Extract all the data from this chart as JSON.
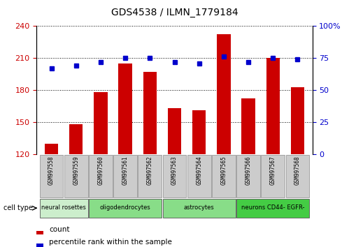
{
  "title": "GDS4538 / ILMN_1779184",
  "samples": [
    "GSM997558",
    "GSM997559",
    "GSM997560",
    "GSM997561",
    "GSM997562",
    "GSM997563",
    "GSM997564",
    "GSM997565",
    "GSM997566",
    "GSM997567",
    "GSM997568"
  ],
  "counts": [
    130,
    148,
    178,
    205,
    197,
    163,
    161,
    232,
    172,
    210,
    183
  ],
  "percentiles": [
    67,
    69,
    72,
    75,
    75,
    72,
    71,
    76,
    72,
    75,
    74
  ],
  "ylim_left": [
    120,
    240
  ],
  "yticks_left": [
    120,
    150,
    180,
    210,
    240
  ],
  "ylim_right": [
    0,
    100
  ],
  "yticks_right": [
    0,
    25,
    50,
    75,
    100
  ],
  "bar_color": "#cc0000",
  "dot_color": "#0000cc",
  "cell_types": [
    {
      "label": "neural rosettes",
      "span": [
        0,
        2
      ],
      "color": "#cceecc"
    },
    {
      "label": "oligodendrocytes",
      "span": [
        2,
        5
      ],
      "color": "#88dd88"
    },
    {
      "label": "astrocytes",
      "span": [
        5,
        8
      ],
      "color": "#88dd88"
    },
    {
      "label": "neurons CD44- EGFR-",
      "span": [
        8,
        11
      ],
      "color": "#44cc44"
    }
  ],
  "left_tick_color": "#cc0000",
  "right_tick_color": "#0000cc",
  "grid_color": "#000000",
  "bg_color": "#ffffff",
  "plot_bg": "#ffffff",
  "legend_count_label": "count",
  "legend_pct_label": "percentile rank within the sample",
  "cell_type_label": "cell type",
  "sample_box_color": "#cccccc",
  "sample_box_edge": "#888888"
}
